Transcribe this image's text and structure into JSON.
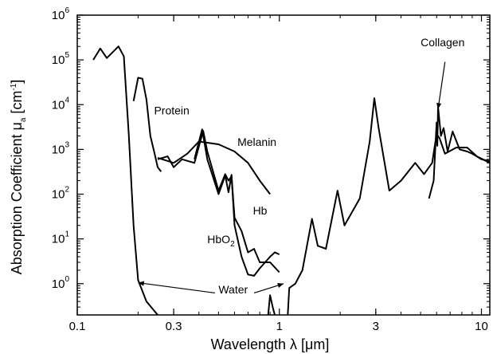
{
  "chart_data": {
    "type": "line",
    "title": "",
    "xlabel": "Wavelength λ [μm]",
    "ylabel": "Absorption Coefficient μ",
    "ylabel_sub": "a",
    "ylabel_unit_prefix": " [cm",
    "ylabel_unit_sup": "-1",
    "ylabel_unit_suffix": "]",
    "xscale": "log",
    "yscale": "log",
    "xlim": [
      0.1,
      11
    ],
    "ylim": [
      0.2,
      1000000
    ],
    "grid": false,
    "legend": "none",
    "x_ticks": [
      {
        "value": 0.1,
        "label": "0.1"
      },
      {
        "value": 0.3,
        "label": "0.3"
      },
      {
        "value": 1,
        "label": "1"
      },
      {
        "value": 3,
        "label": "3"
      },
      {
        "value": 10,
        "label": "10"
      }
    ],
    "y_ticks": [
      {
        "value": 1,
        "base": "10",
        "exp": "0"
      },
      {
        "value": 10,
        "base": "10",
        "exp": "1"
      },
      {
        "value": 100,
        "base": "10",
        "exp": "2"
      },
      {
        "value": 1000,
        "base": "10",
        "exp": "3"
      },
      {
        "value": 10000,
        "base": "10",
        "exp": "4"
      },
      {
        "value": 100000,
        "base": "10",
        "exp": "5"
      },
      {
        "value": 1000000,
        "base": "10",
        "exp": "6"
      }
    ],
    "series": [
      {
        "name": "Water",
        "values": [
          [
            0.12,
            100000
          ],
          [
            0.13,
            180000
          ],
          [
            0.14,
            110000
          ],
          [
            0.16,
            200000
          ],
          [
            0.17,
            120000
          ],
          [
            0.18,
            2000
          ],
          [
            0.19,
            20
          ],
          [
            0.2,
            1.2
          ],
          [
            0.22,
            0.4
          ],
          [
            0.25,
            0.2
          ]
        ]
      },
      {
        "name": "Water",
        "values": [
          [
            0.88,
            0.2
          ],
          [
            0.9,
            0.55
          ],
          [
            0.93,
            0.28
          ],
          [
            0.95,
            0.2
          ]
        ]
      },
      {
        "name": "Water",
        "values": [
          [
            1.1,
            0.2
          ],
          [
            1.12,
            0.8
          ],
          [
            1.2,
            1.0
          ],
          [
            1.3,
            2
          ],
          [
            1.45,
            28
          ],
          [
            1.55,
            7
          ],
          [
            1.7,
            6
          ],
          [
            1.94,
            120
          ],
          [
            2.1,
            20
          ],
          [
            2.5,
            80
          ],
          [
            2.8,
            1500
          ],
          [
            2.95,
            14000
          ],
          [
            3.1,
            3000
          ],
          [
            3.5,
            120
          ],
          [
            4,
            200
          ],
          [
            4.7,
            500
          ],
          [
            5.2,
            280
          ],
          [
            5.7,
            500
          ],
          [
            6.0,
            2200
          ],
          [
            6.2,
            1800
          ],
          [
            6.6,
            800
          ],
          [
            7.5,
            1100
          ],
          [
            8.5,
            1100
          ],
          [
            9.5,
            700
          ],
          [
            11,
            500
          ]
        ]
      },
      {
        "name": "Protein",
        "values": [
          [
            0.19,
            12000
          ],
          [
            0.2,
            40000
          ],
          [
            0.21,
            38000
          ],
          [
            0.22,
            13000
          ],
          [
            0.23,
            2000
          ],
          [
            0.24,
            900
          ],
          [
            0.25,
            400
          ],
          [
            0.26,
            320
          ]
        ]
      },
      {
        "name": "Melanin",
        "values": [
          [
            0.25,
            650
          ],
          [
            0.3,
            500
          ],
          [
            0.35,
            800
          ],
          [
            0.4,
            1500
          ],
          [
            0.5,
            1300
          ],
          [
            0.6,
            900
          ],
          [
            0.7,
            500
          ],
          [
            0.8,
            200
          ],
          [
            0.9,
            100
          ]
        ]
      },
      {
        "name": "Hb",
        "values": [
          [
            0.25,
            600
          ],
          [
            0.28,
            700
          ],
          [
            0.3,
            400
          ],
          [
            0.33,
            600
          ],
          [
            0.38,
            500
          ],
          [
            0.42,
            2600
          ],
          [
            0.44,
            900
          ],
          [
            0.5,
            120
          ],
          [
            0.54,
            280
          ],
          [
            0.56,
            200
          ],
          [
            0.58,
            250
          ],
          [
            0.6,
            30
          ],
          [
            0.65,
            15
          ],
          [
            0.7,
            5
          ],
          [
            0.75,
            6
          ],
          [
            0.8,
            3
          ],
          [
            0.9,
            3
          ],
          [
            1.0,
            1.8
          ]
        ]
      },
      {
        "name": "HbO2",
        "values": [
          [
            0.38,
            600
          ],
          [
            0.415,
            2800
          ],
          [
            0.44,
            600
          ],
          [
            0.5,
            100
          ],
          [
            0.54,
            260
          ],
          [
            0.56,
            110
          ],
          [
            0.58,
            270
          ],
          [
            0.6,
            20
          ],
          [
            0.65,
            4
          ],
          [
            0.7,
            1.6
          ],
          [
            0.75,
            1.5
          ],
          [
            0.8,
            2.2
          ],
          [
            0.9,
            4
          ],
          [
            0.95,
            5
          ],
          [
            1.0,
            4.5
          ]
        ]
      },
      {
        "name": "Collagen",
        "values": [
          [
            5.5,
            80
          ],
          [
            5.8,
            200
          ],
          [
            6.0,
            4000
          ],
          [
            6.05,
            1200
          ],
          [
            6.1,
            9000
          ],
          [
            6.3,
            2000
          ],
          [
            6.5,
            3000
          ],
          [
            6.8,
            900
          ],
          [
            7.2,
            2500
          ],
          [
            7.8,
            1000
          ],
          [
            8.5,
            900
          ],
          [
            9,
            800
          ],
          [
            10,
            600
          ],
          [
            11,
            550
          ]
        ]
      }
    ],
    "annotations": [
      {
        "text": "Protein",
        "x": 0.24,
        "y": 6000
      },
      {
        "text": "Melanin",
        "x": 0.62,
        "y": 1200
      },
      {
        "text": "Hb",
        "x": 0.74,
        "y": 35
      },
      {
        "text": "HbO",
        "sub": "2",
        "x": 0.44,
        "y": 8
      },
      {
        "text": "Water",
        "x": 0.5,
        "y": 0.6
      },
      {
        "text": "Collagen",
        "x": 5.0,
        "y": 200000
      }
    ]
  }
}
